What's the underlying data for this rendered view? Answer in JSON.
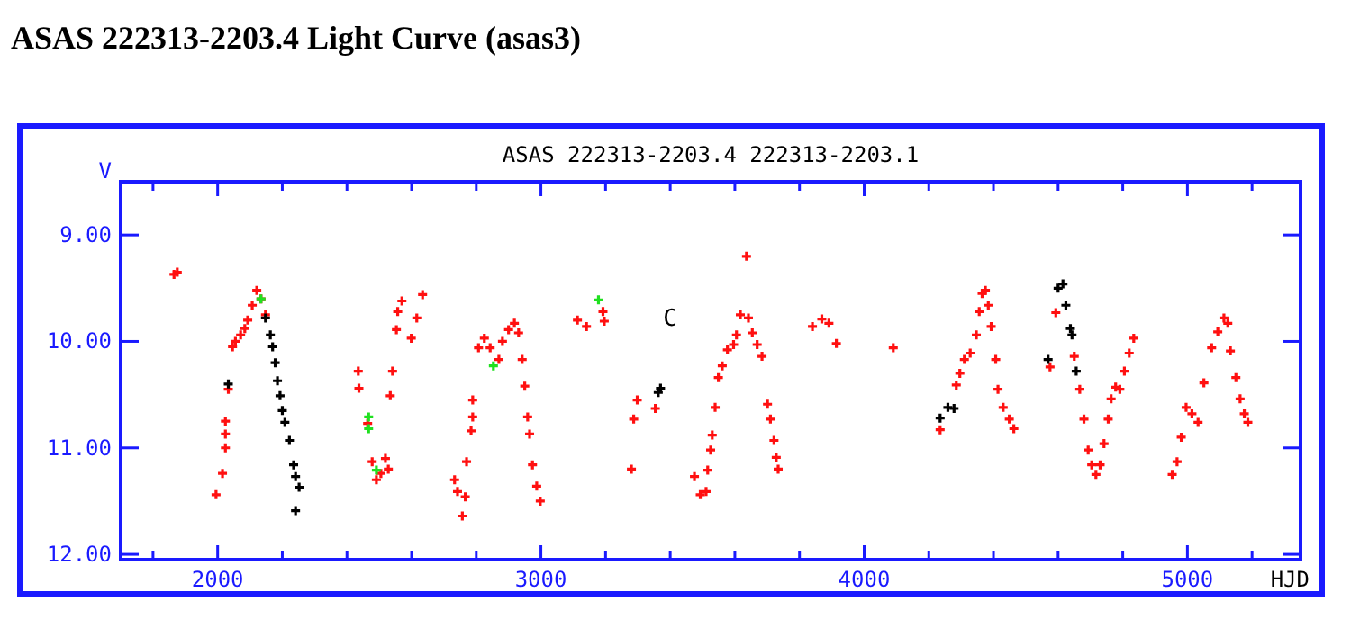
{
  "chart_data": {
    "type": "scatter",
    "title": "ASAS 222313-2203.4 Light Curve (asas3)",
    "subtitle": "ASAS 222313-2203.4 222313-2203.1",
    "xlabel": "HJD",
    "ylabel": "V",
    "marker": "cross",
    "grid": false,
    "xlim": [
      1700,
      5350
    ],
    "ylim": [
      12.05,
      8.5
    ],
    "xticks": [
      {
        "value": 1800,
        "label": null
      },
      2000,
      {
        "value": 2200,
        "label": null
      },
      {
        "value": 2400,
        "label": null
      },
      {
        "value": 2600,
        "label": null
      },
      {
        "value": 2800,
        "label": null
      },
      3000,
      {
        "value": 3200,
        "label": null
      },
      {
        "value": 3400,
        "label": null
      },
      {
        "value": 3600,
        "label": null
      },
      {
        "value": 3800,
        "label": null
      },
      4000,
      {
        "value": 4200,
        "label": null
      },
      {
        "value": 4400,
        "label": null
      },
      {
        "value": 4600,
        "label": null
      },
      {
        "value": 4800,
        "label": null
      },
      5000,
      {
        "value": 5200,
        "label": null
      }
    ],
    "yticks": [
      {
        "value": 9,
        "label": "9.00"
      },
      {
        "value": 10,
        "label": "10.00"
      },
      {
        "value": 11,
        "label": "11.00"
      },
      {
        "value": 12,
        "label": "12.00"
      }
    ],
    "annotations": [
      "C"
    ],
    "series": [
      {
        "color": "#ff1010",
        "x": [
          1865,
          1875,
          1995,
          2015,
          2024,
          2024,
          2024,
          2033,
          2046,
          2055,
          2071,
          2084,
          2093,
          2107,
          2121,
          2134,
          2148,
          2435,
          2437,
          2464,
          2478,
          2491,
          2505,
          2519,
          2528,
          2534,
          2541,
          2553,
          2557,
          2570,
          2599,
          2616,
          2634,
          2733,
          2742,
          2757,
          2766,
          2770,
          2784,
          2789,
          2789,
          2807,
          2825,
          2843,
          2870,
          2881,
          2900,
          2918,
          2931,
          2942,
          2950,
          2959,
          2965,
          2974,
          2987,
          2998,
          3113,
          3141,
          3192,
          3196,
          3280,
          3287,
          3298,
          3354,
          3475,
          3493,
          3511,
          3516,
          3525,
          3530,
          3539,
          3549,
          3561,
          3577,
          3596,
          3605,
          3617,
          3636,
          3642,
          3654,
          3669,
          3684,
          3701,
          3710,
          3721,
          3728,
          3734,
          3840,
          3869,
          3891,
          3914,
          4090,
          4235,
          4285,
          4296,
          4310,
          4328,
          4347,
          4356,
          4365,
          4375,
          4384,
          4393,
          4407,
          4414,
          4430,
          4449,
          4463,
          4575,
          4593,
          4650,
          4667,
          4680,
          4693,
          4704,
          4717,
          4730,
          4742,
          4755,
          4764,
          4778,
          4791,
          4805,
          4820,
          4834,
          4953,
          4968,
          4981,
          4996,
          5014,
          5033,
          5051,
          5075,
          5094,
          5113,
          5125,
          5133,
          5150,
          5163,
          5176,
          5187
        ],
        "values": [
          9.37,
          9.35,
          11.44,
          11.24,
          11.0,
          10.87,
          10.75,
          10.45,
          10.05,
          10.0,
          9.94,
          9.88,
          9.8,
          9.66,
          9.52,
          9.6,
          9.75,
          10.28,
          10.44,
          10.77,
          11.13,
          11.3,
          11.24,
          11.1,
          11.2,
          10.51,
          10.28,
          9.89,
          9.72,
          9.62,
          9.97,
          9.78,
          9.56,
          11.3,
          11.41,
          11.64,
          11.46,
          11.13,
          10.84,
          10.71,
          10.55,
          10.06,
          9.97,
          10.06,
          10.17,
          10.0,
          9.89,
          9.83,
          9.92,
          10.17,
          10.42,
          10.71,
          10.87,
          11.16,
          11.36,
          11.5,
          9.8,
          9.86,
          9.72,
          9.81,
          11.2,
          10.73,
          10.55,
          10.63,
          11.27,
          11.44,
          11.41,
          11.21,
          11.02,
          10.88,
          10.62,
          10.34,
          10.23,
          10.08,
          10.03,
          9.94,
          9.75,
          9.2,
          9.78,
          9.92,
          10.03,
          10.14,
          10.59,
          10.73,
          10.93,
          11.09,
          11.2,
          9.86,
          9.79,
          9.83,
          10.02,
          10.06,
          10.83,
          10.41,
          10.3,
          10.17,
          10.11,
          9.94,
          9.72,
          9.55,
          9.52,
          9.66,
          9.86,
          10.17,
          10.45,
          10.62,
          10.73,
          10.82,
          10.24,
          9.73,
          10.14,
          10.45,
          10.73,
          11.02,
          11.16,
          11.25,
          11.16,
          10.96,
          10.73,
          10.54,
          10.43,
          10.45,
          10.28,
          10.11,
          9.97,
          11.25,
          11.13,
          10.9,
          10.62,
          10.68,
          10.76,
          10.39,
          10.06,
          9.91,
          9.78,
          9.83,
          10.09,
          10.34,
          10.54,
          10.68,
          10.76
        ]
      },
      {
        "color": "#000000",
        "x": [
          2033,
          2148,
          2163,
          2170,
          2178,
          2185,
          2193,
          2200,
          2208,
          2222,
          2235,
          2241,
          2252,
          2241,
          3363,
          3370,
          4235,
          4259,
          4278,
          4569,
          4600,
          4615,
          4624,
          4638,
          4643,
          4656
        ],
        "values": [
          10.4,
          9.78,
          9.94,
          10.05,
          10.2,
          10.37,
          10.51,
          10.65,
          10.76,
          10.93,
          11.16,
          11.27,
          11.37,
          11.59,
          10.48,
          10.44,
          10.72,
          10.62,
          10.63,
          10.17,
          9.5,
          9.46,
          9.66,
          9.88,
          9.94,
          10.28
        ]
      },
      {
        "color": "#20e020",
        "x": [
          2134,
          2467,
          2467,
          2491,
          2853,
          3178
        ],
        "values": [
          9.6,
          10.71,
          10.82,
          11.21,
          10.23,
          9.61
        ]
      }
    ]
  }
}
